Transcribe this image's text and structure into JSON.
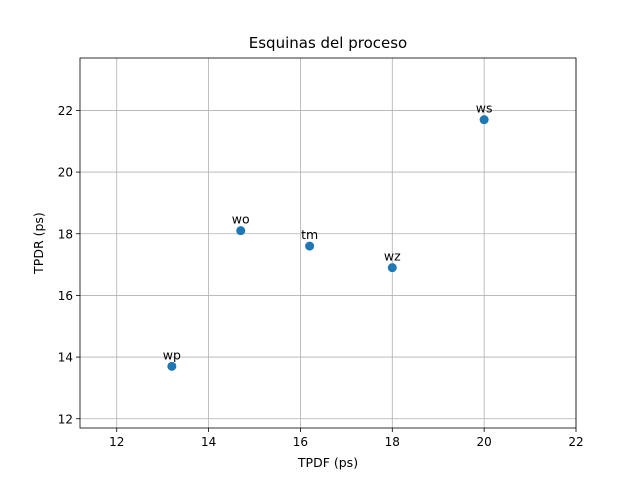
{
  "chart_data": {
    "type": "scatter",
    "title": "Esquinas del proceso",
    "xlabel": "TPDF (ps)",
    "ylabel": "TPDR (ps)",
    "xlim": [
      11.2,
      22
    ],
    "ylim": [
      11.7,
      23.7
    ],
    "xticks": [
      12,
      14,
      16,
      18,
      20,
      22
    ],
    "yticks": [
      12,
      14,
      16,
      18,
      20,
      22
    ],
    "grid": true,
    "marker_color": "#1f77b4",
    "points": [
      {
        "label": "wp",
        "x": 13.2,
        "y": 13.7
      },
      {
        "label": "wo",
        "x": 14.7,
        "y": 18.1
      },
      {
        "label": "tm",
        "x": 16.2,
        "y": 17.6
      },
      {
        "label": "wz",
        "x": 18.0,
        "y": 16.9
      },
      {
        "label": "ws",
        "x": 20.0,
        "y": 21.7
      }
    ]
  }
}
